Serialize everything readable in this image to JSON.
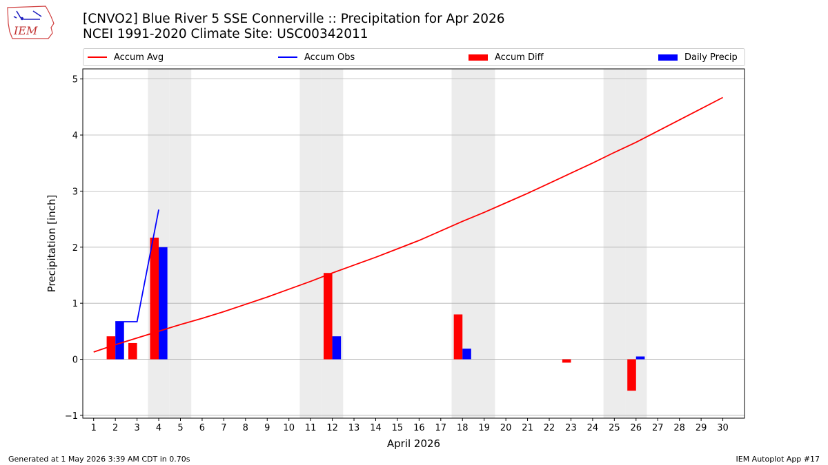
{
  "header": {
    "logo_text": "IEM",
    "title_line1": "[CNVO2] Blue River 5 SSE Connerville :: Precipitation for Apr 2026",
    "title_line2": "NCEI 1991-2020 Climate Site: USC00342011"
  },
  "legend": {
    "accum_avg": "Accum Avg",
    "accum_obs": "Accum Obs",
    "accum_diff": "Accum Diff",
    "daily_precip": "Daily Precip"
  },
  "colors": {
    "accum_avg": "#ff0000",
    "accum_obs": "#0000ff",
    "accum_diff": "#ff0000",
    "daily_precip": "#0000ff",
    "weekend_shade": "#ececec",
    "grid": "#b0b0b0"
  },
  "chart_data": {
    "type": "bar",
    "xlabel": "April 2026",
    "ylabel": "Precipitation [inch]",
    "xlim": [
      0.5,
      31
    ],
    "ylim": [
      -1.05,
      5.18
    ],
    "x_ticks": [
      1,
      2,
      3,
      4,
      5,
      6,
      7,
      8,
      9,
      10,
      11,
      12,
      13,
      14,
      15,
      16,
      17,
      18,
      19,
      20,
      21,
      22,
      23,
      24,
      25,
      26,
      27,
      28,
      29,
      30
    ],
    "y_ticks": [
      -1,
      0,
      1,
      2,
      3,
      4,
      5
    ],
    "grid": "horizontal",
    "legend_position": "top",
    "shaded_days": [
      4,
      5,
      11,
      12,
      18,
      19,
      25,
      26
    ],
    "series": [
      {
        "name": "Accum Avg",
        "kind": "line",
        "x": [
          1,
          2,
          3,
          4,
          5,
          6,
          7,
          8,
          9,
          10,
          11,
          12,
          13,
          14,
          15,
          16,
          17,
          18,
          19,
          20,
          21,
          22,
          23,
          24,
          25,
          26,
          27,
          28,
          29,
          30
        ],
        "values": [
          0.13,
          0.26,
          0.38,
          0.5,
          0.62,
          0.73,
          0.85,
          0.98,
          1.11,
          1.25,
          1.39,
          1.54,
          1.68,
          1.82,
          1.97,
          2.12,
          2.29,
          2.46,
          2.62,
          2.79,
          2.96,
          3.14,
          3.32,
          3.5,
          3.69,
          3.87,
          4.07,
          4.27,
          4.47,
          4.67
        ]
      },
      {
        "name": "Accum Obs",
        "kind": "line",
        "x": [
          2,
          3,
          4
        ],
        "values": [
          0.67,
          0.67,
          2.67
        ]
      },
      {
        "name": "Accum Diff",
        "kind": "bar",
        "x": [
          2,
          3,
          4,
          12,
          18,
          23,
          26
        ],
        "values": [
          0.41,
          0.29,
          2.17,
          1.54,
          0.8,
          -0.06,
          -0.56
        ]
      },
      {
        "name": "Daily Precip",
        "kind": "bar",
        "x": [
          2,
          4,
          12,
          18,
          26
        ],
        "values": [
          0.67,
          2.0,
          0.41,
          0.19,
          0.05
        ]
      }
    ]
  },
  "footer": {
    "generated": "Generated at 1 May 2026 3:39 AM CDT in 0.70s",
    "app": "IEM Autoplot App #17"
  }
}
